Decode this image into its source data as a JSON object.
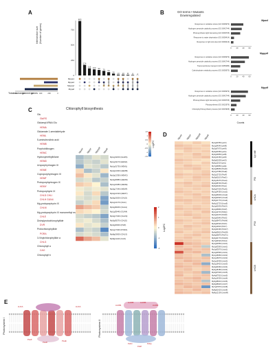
{
  "panels": {
    "a": "A",
    "b": "B",
    "c": "C",
    "d": "D",
    "e": "E"
  },
  "panel_a": {
    "ylabel_line1": "Intersection size",
    "ylabel_line2": "(Number of genes)",
    "xlabel": "Total rearrangement genes",
    "set_names": [
      "Mppa1",
      "Mppa2",
      "Mpppyf",
      "Mppaf"
    ],
    "set_colors": [
      "#b07a3a",
      "#2a2f68",
      "#c4a56a",
      "#0d1b3f"
    ],
    "bar_value_labels": [
      "893",
      "174",
      "116",
      "100",
      "90",
      "75",
      "54",
      "30",
      "13",
      "13",
      "11",
      "8",
      "2"
    ],
    "set_axis_ticks": [
      "1000",
      "800",
      "600",
      "400",
      "200",
      "0"
    ],
    "intersect_axis_ticks": [
      "0",
      "250",
      "500",
      "750"
    ]
  },
  "panel_b": {
    "title_line1": "GO terms • Mutants",
    "title_line2": "Downregulated",
    "xlabel": "Counts",
    "sections": [
      {
        "name": "Mpasf",
        "terms": [
          "Response to oxidative stress (GO:0006979)",
          "Hydrogen peroxide catabolic process (GO:0042744)",
          "Photosynthesis light harvesting (GO:0009765)",
          "Response to water deprivation (GO:0009414)",
          "Response to light stimulus (GO:0009416)"
        ],
        "values": [
          40,
          35,
          30,
          10,
          8
        ]
      },
      {
        "name": "Mppydf",
        "terms": [
          "Response to oxidative stress (GO:0006979)",
          "Hydrogen peroxide catabolic process (GO:0042744)",
          "Transmembrane transport (GO:0055085)",
          "Carbohydrate metabolic process (GO:0005975)"
        ],
        "values": [
          58,
          45,
          30,
          22
        ]
      },
      {
        "name": "Mpydf",
        "terms": [
          "Response to oxidative stress (GO:0006979)",
          "Hydrogen peroxide catabolic process (GO:0042744)",
          "Photosynthesis light harvesting (GO:0009765)",
          "Photosynthesis (GO:0015979)",
          "Chlorophyll biosynthetic process (GO:0015995)"
        ],
        "values": [
          55,
          48,
          30,
          18,
          12
        ]
      }
    ],
    "xticks": [
      "0",
      "20",
      "40",
      "60"
    ]
  },
  "panel_c": {
    "title": "Chlorophyll biosynthesis",
    "pathway": [
      {
        "text": "Glu",
        "red": false
      },
      {
        "text": "GluRS",
        "red": true
      },
      {
        "text": "Glutamyl-tRNA Glu",
        "red": false
      },
      {
        "text": "HEMA",
        "red": true
      },
      {
        "text": "Glutamate 1-semialdehyde",
        "red": false
      },
      {
        "text": "HEML",
        "red": true
      },
      {
        "text": "5-aminolevulinic acid",
        "red": false
      },
      {
        "text": "HEMB",
        "red": true
      },
      {
        "text": "Porphobilinogen",
        "red": false
      },
      {
        "text": "HEMC",
        "red": true
      },
      {
        "text": "Hydroxymethylbilane",
        "red": false
      },
      {
        "text": "HEMD",
        "red": true
      },
      {
        "text": "Uroporphyrinogen III",
        "red": false
      },
      {
        "text": "HEME",
        "red": true
      },
      {
        "text": "Coproporphyrinogen III",
        "red": false
      },
      {
        "text": "HEMF",
        "red": true
      },
      {
        "text": "Protoporphyrinogen IX",
        "red": false
      },
      {
        "text": "HEMY",
        "red": true
      },
      {
        "text": "Protoporphyrin IX",
        "red": false
      },
      {
        "text": "CHLD CHLI",
        "red": true
      },
      {
        "text": "CHLH GUN4",
        "red": true
      },
      {
        "text": "Mg-protoporphyrin IX",
        "red": false
      },
      {
        "text": "CHLM",
        "red": true
      },
      {
        "text": "Mg-protoporphyrin IX monomethyl ester",
        "red": false
      },
      {
        "text": "CHLE",
        "red": true
      },
      {
        "text": "Divinylprotochlorophyllide",
        "red": false
      },
      {
        "text": "DVR",
        "red": true
      },
      {
        "text": "Protochlorophyllide",
        "red": false
      },
      {
        "text": "PORA",
        "red": true
      },
      {
        "text": "3-Vinylchlorophyllide a",
        "red": false
      },
      {
        "text": "CHLG",
        "red": true
      },
      {
        "text": "Chlorophyll a",
        "red": false
      },
      {
        "text": "CAO",
        "red": true
      },
      {
        "text": "Chlorophyll b",
        "red": false
      }
    ],
    "columns": [
      "Mpasf",
      "Mppyf",
      "Mppydf",
      "Mpydf"
    ],
    "genes": [
      "Mp1g01150 (GluRS)",
      "Mp1g01170 (HEMA)",
      "Mp1g01730 (HEML)",
      "Mp2g12300 (HEMB)",
      "Mp2g12350 (HEMC)",
      "Mp3g20880 (HEMD)",
      "Mp1g10080 (HEME)",
      "Mp5g17340 (HEMF)",
      "Mp4g12310 (HEMY)",
      "Mp6g19200 (CHLD)",
      "Mp1g12170 (CHLI)",
      "Mp4g06200 (CHLH)",
      "Mp1g05440 (GUN4)",
      "Mp4g17040 (CHLM)",
      "Mp5g05370 (CHLE)",
      "Mp3g20000 (DVR)",
      "Mp1g17940 (PORA)",
      "Mp8g19000 (CHLG)",
      "Mp8g11140 (CAO)"
    ],
    "legend_title": "Log2FC",
    "legend_ticks": [
      "1.5",
      "1",
      "0.5",
      "0",
      "-0.5",
      "-1",
      "-1.5"
    ],
    "values": [
      [
        -0.6,
        -0.4,
        -0.2,
        -0.3
      ],
      [
        -0.5,
        -0.3,
        -0.4,
        -0.2
      ],
      [
        -0.8,
        -0.2,
        -0.3,
        -0.5
      ],
      [
        0.2,
        -0.6,
        -0.4,
        0.1
      ],
      [
        0.4,
        0.1,
        -0.2,
        -0.7
      ],
      [
        -0.3,
        -0.2,
        -0.5,
        -0.4
      ],
      [
        0.3,
        0.2,
        0.0,
        -0.6
      ],
      [
        -0.1,
        -0.2,
        -0.1,
        -0.2
      ],
      [
        0.1,
        -0.3,
        0.2,
        -0.5
      ],
      [
        -0.2,
        -0.3,
        -0.2,
        -0.9
      ],
      [
        -0.4,
        -0.2,
        0.2,
        -1.0
      ],
      [
        0.6,
        0.4,
        0.3,
        -0.4
      ],
      [
        0.2,
        0.1,
        0.0,
        -0.3
      ],
      [
        -0.3,
        -0.4,
        -0.5,
        -0.9
      ],
      [
        -0.2,
        -0.1,
        -0.3,
        -0.6
      ],
      [
        0.1,
        -0.2,
        -0.1,
        -0.4
      ],
      [
        -0.6,
        -0.3,
        -0.4,
        -1.2
      ],
      [
        -0.3,
        -0.2,
        -0.3,
        -0.6
      ],
      [
        1.0,
        0.6,
        0.4,
        -0.2
      ]
    ]
  },
  "panel_d": {
    "columns": [
      "Mpasf",
      "Mppyf",
      "Mppydf",
      "Mpydf"
    ],
    "legend_title": "Log2FC",
    "legend_ticks": [
      "2",
      "1",
      "0",
      "-1",
      "-2"
    ],
    "groups": [
      {
        "name": "Cyt b6f",
        "color": "#111111",
        "rows": 9
      },
      {
        "name": "PSI",
        "color": "#d0d0d0",
        "rows": 8
      },
      {
        "name": "LHCA",
        "color": "#7b5b3e",
        "rows": 5
      },
      {
        "name": "PSII",
        "color": "#d0d0d0",
        "rows": 13
      },
      {
        "name": "LHCB",
        "color": "#7b5b3e",
        "rows": 18
      }
    ],
    "genes": [
      "Mp1g01550 (petC)",
      "Mp1g04040 (petM)",
      "Mp2g07670 (petN)",
      "Mp3g03360 (petA)",
      "Mp3g20650 (petB)",
      "Mp4g13160 (petD)",
      "Mp5g01600 (petG)",
      "Mp5g11310 (petL)",
      "Mp7g09950 (petE)",
      "Mp1g08060 (PsaD)",
      "Mp1g17680 (PsaE)",
      "Mp2g13720 (PsaF)",
      "Mp3g01100 (PsaG)",
      "Mp3g16470 (PsaH)",
      "Mp4g08730 (PsaK)",
      "Mp5g03240 (PsaL)",
      "Mp6g07000 (PsaN)",
      "Mp1g24350 (Lhca1)",
      "Mp2g06600 (Lhca2)",
      "Mp4g02920 (Lhca3)",
      "Mp5g21770 (Lhca4)",
      "Mp6g11720 (Lhca5)",
      "Mp1g02030 (PsbO)",
      "Mp1g06890 (PsbP)",
      "Mp1g11720 (PsbQ)",
      "Mp1g22470 (PsbR)",
      "Mp2g03640 (PsbS)",
      "Mp2g08470 (PsbW)",
      "Mp3g04520 (PsbX)",
      "Mp3g13610 (PsbY)",
      "Mp4g04390 (Psb27)",
      "Mp4g09610 (Psb28)",
      "Mp5g06870 (PsbTn)",
      "Mp6g04770 (Psb29)",
      "Mp7g04520 (PsbH)",
      "Mp1g03550 (Lhcb1)",
      "Mp1g03560 (Lhcb1)",
      "Mp1g03570 (Lhcb1)",
      "Mp1g03590 (Lhcb1)",
      "Mp1g16660 (Lhcb2)",
      "Mp1g16670 (Lhcb2)",
      "Mp2g16400 (Lhcb3)",
      "Mp2g16410 (Lhcb3)",
      "Mp3g04960 (Lhcb4)",
      "Mp3g18180 (Lhcb4)",
      "Mp4g07900 (Lhcb5)",
      "Mp4g07910 (Lhcb5)",
      "Mp5g16300 (Lhcb6)",
      "Mp6g08010 (Lhcb6)",
      "Mp6g08020 (Lhcb7)",
      "Mp7g07870 (Lhcb8)",
      "Mp8g01620 (Lhcb8)",
      "Mp8g12100 (LhcbM)"
    ],
    "values": [
      [
        0.3,
        0.2,
        0.4,
        0.2
      ],
      [
        0.5,
        0.4,
        0.3,
        0.4
      ],
      [
        0.4,
        0.5,
        0.4,
        0.3
      ],
      [
        0.2,
        0.4,
        0.3,
        0.4
      ],
      [
        0.4,
        0.3,
        0.5,
        0.3
      ],
      [
        0.3,
        0.3,
        0.4,
        0.5
      ],
      [
        0.5,
        0.4,
        0.3,
        0.2
      ],
      [
        0.4,
        0.3,
        0.2,
        0.4
      ],
      [
        0.3,
        0.5,
        0.4,
        0.3
      ],
      [
        0.4,
        0.4,
        0.5,
        0.3
      ],
      [
        0.3,
        0.2,
        0.3,
        0.4
      ],
      [
        0.5,
        0.4,
        0.4,
        0.5
      ],
      [
        0.4,
        0.3,
        0.5,
        0.4
      ],
      [
        0.2,
        0.3,
        0.4,
        0.3
      ],
      [
        0.4,
        0.5,
        0.3,
        0.4
      ],
      [
        0.3,
        0.4,
        0.4,
        0.5
      ],
      [
        0.4,
        0.3,
        0.4,
        0.3
      ],
      [
        0.5,
        0.4,
        0.3,
        0.4
      ],
      [
        0.3,
        0.4,
        0.5,
        0.3
      ],
      [
        0.4,
        0.3,
        0.4,
        0.5
      ],
      [
        0.5,
        0.5,
        0.4,
        0.4
      ],
      [
        0.3,
        0.4,
        0.3,
        0.4
      ],
      [
        0.4,
        0.3,
        0.4,
        0.3
      ],
      [
        0.5,
        0.4,
        0.5,
        0.4
      ],
      [
        0.3,
        0.4,
        0.3,
        0.5
      ],
      [
        0.4,
        0.5,
        0.4,
        0.3
      ],
      [
        0.3,
        0.3,
        0.5,
        0.4
      ],
      [
        0.5,
        0.4,
        0.3,
        0.4
      ],
      [
        0.4,
        0.3,
        0.4,
        0.5
      ],
      [
        0.3,
        0.5,
        0.4,
        0.3
      ],
      [
        0.4,
        0.4,
        0.3,
        0.4
      ],
      [
        0.5,
        0.3,
        0.4,
        0.5
      ],
      [
        0.3,
        0.4,
        0.5,
        0.3
      ],
      [
        0.4,
        0.5,
        0.3,
        0.4
      ],
      [
        0.5,
        0.4,
        0.4,
        0.3
      ],
      [
        1.9,
        0.6,
        0.5,
        0.4
      ],
      [
        0.6,
        0.4,
        0.5,
        -0.6
      ],
      [
        0.5,
        0.6,
        0.4,
        0.5
      ],
      [
        1.6,
        0.5,
        0.6,
        0.4
      ],
      [
        0.5,
        0.4,
        0.3,
        -0.8
      ],
      [
        0.6,
        0.5,
        0.4,
        0.5
      ],
      [
        0.4,
        0.6,
        0.5,
        0.4
      ],
      [
        0.5,
        0.4,
        0.6,
        -1.1
      ],
      [
        0.6,
        0.5,
        0.4,
        0.5
      ],
      [
        0.4,
        0.5,
        0.3,
        0.4
      ],
      [
        0.5,
        0.4,
        0.5,
        -0.9
      ],
      [
        0.6,
        0.3,
        0.4,
        0.5
      ],
      [
        0.4,
        0.5,
        0.6,
        0.4
      ],
      [
        0.5,
        0.4,
        0.5,
        -0.7
      ],
      [
        0.6,
        0.5,
        0.4,
        0.5
      ],
      [
        0.4,
        0.6,
        0.5,
        -1.4
      ],
      [
        0.5,
        0.4,
        0.6,
        0.4
      ],
      [
        0.6,
        0.5,
        0.4,
        0.5
      ]
    ]
  },
  "panel_e": {
    "photosystem_1": "Photosystem I",
    "photosystem_2": "Photosystem II",
    "ps1_labels": [
      "LHCA",
      "PsaF",
      "PsaD",
      "PsaE",
      "LHCA"
    ],
    "ps2_labels": [
      "LHCB4",
      "LHCB5",
      "LHCB6",
      "LHCB3",
      "PsbO",
      "PsbP",
      "PsbQ"
    ]
  }
}
